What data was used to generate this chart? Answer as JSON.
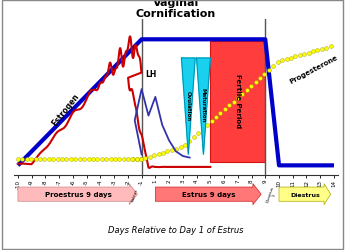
{
  "title": "Vaginal\nCornification",
  "xlabel": "Days Relative to Day 1 of Estrus",
  "bg_color": "#ffffff",
  "border_color": "#888888",
  "vaginal_line_color": "#0000cc",
  "estrogen_color": "#cc0000",
  "progesterone_color": "#ffff00",
  "lh_color": "#3333aa",
  "ovulation_fill": "#00ccee",
  "maturation_fill": "#00ccee",
  "fertile_fill": "#ff2222",
  "fertile_border": "#cc0000",
  "proestrus_arrow_fc": "#ffbbbb",
  "proestrus_arrow_ec": "#cc8888",
  "estrus_arrow_fc": "#ff7777",
  "estrus_arrow_ec": "#cc2222",
  "diestrus_arrow_fc": "#ffff88",
  "diestrus_arrow_ec": "#aaaa00",
  "gray_vline_color": "#555555",
  "tick_days_neg": [
    -10,
    -9,
    -8,
    -7,
    -6,
    -5,
    -4,
    -3,
    -2,
    -1
  ],
  "tick_days_pos": [
    1,
    2,
    3,
    4,
    5,
    6,
    7,
    8,
    9,
    10,
    11,
    12,
    13,
    14
  ]
}
